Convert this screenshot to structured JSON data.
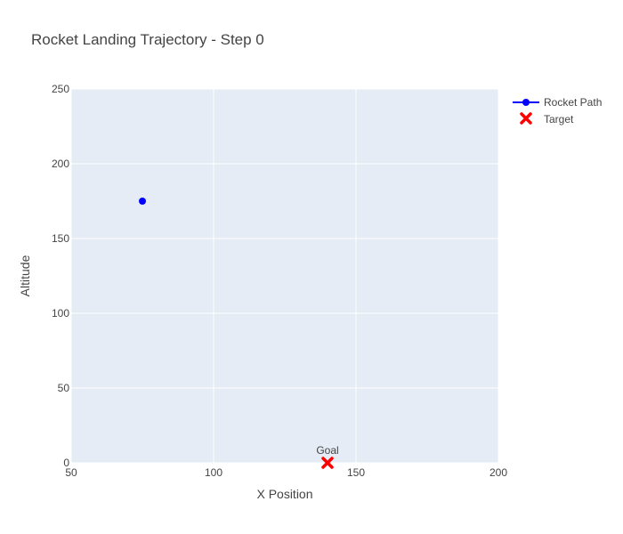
{
  "chart_data": {
    "type": "scatter",
    "title": "Rocket Landing Trajectory - Step 0",
    "xlabel": "X Position",
    "ylabel": "Altitude",
    "xlim": [
      50,
      200
    ],
    "ylim": [
      0,
      250
    ],
    "xticks": [
      50,
      100,
      150,
      200
    ],
    "yticks": [
      0,
      50,
      100,
      150,
      200,
      250
    ],
    "grid": true,
    "legend_position": "top-right",
    "colors": {
      "plot_background": "#e5ecf6",
      "grid": "#ffffff",
      "rocket": "#0000ff",
      "target": "#ff0000"
    },
    "series": [
      {
        "name": "Rocket Path",
        "mode": "lines+markers",
        "x": [
          75
        ],
        "y": [
          175
        ]
      },
      {
        "name": "Target",
        "mode": "markers",
        "marker": "x",
        "x": [
          140
        ],
        "y": [
          0
        ]
      }
    ],
    "annotations": [
      {
        "text": "Goal",
        "x": 140,
        "y": 0
      }
    ]
  }
}
